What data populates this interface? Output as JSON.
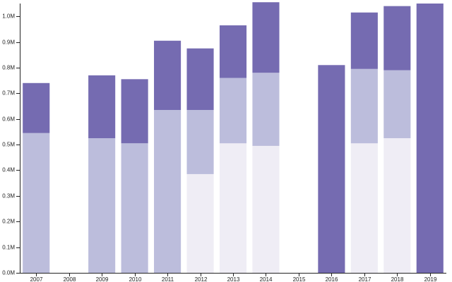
{
  "chart_data": {
    "type": "bar",
    "stacked": true,
    "categories": [
      "2007",
      "2008",
      "2009",
      "2010",
      "2011",
      "2012",
      "2013",
      "2014",
      "2015",
      "2016",
      "2017",
      "2018",
      "2019"
    ],
    "series": [
      {
        "values": [
          0,
          0,
          0,
          0,
          0,
          0.385,
          0.505,
          0.495,
          0,
          0,
          0.505,
          0.525,
          0
        ],
        "color": "#efedf5"
      },
      {
        "values": [
          0.545,
          0,
          0.525,
          0.505,
          0.635,
          0.25,
          0.255,
          0.285,
          0,
          0,
          0.29,
          0.265,
          0
        ],
        "color": "#bcbddc"
      },
      {
        "values": [
          0.195,
          0,
          0.245,
          0.25,
          0.27,
          0.24,
          0.205,
          0.275,
          0,
          0.81,
          0.22,
          0.25,
          1.05
        ],
        "color": "#756bb1"
      }
    ],
    "ylim": [
      0,
      1.05
    ],
    "yticks": [
      0,
      0.1,
      0.2,
      0.3,
      0.4,
      0.5,
      0.6,
      0.7,
      0.8,
      0.9,
      1.0
    ],
    "ytick_labels": [
      "0.0M",
      "0.1M",
      "0.2M",
      "0.3M",
      "0.4M",
      "0.5M",
      "0.6M",
      "0.7M",
      "0.8M",
      "0.9M",
      "1.0M"
    ],
    "title": "",
    "xlabel": "",
    "ylabel": "",
    "grid": false,
    "legend": "none"
  }
}
